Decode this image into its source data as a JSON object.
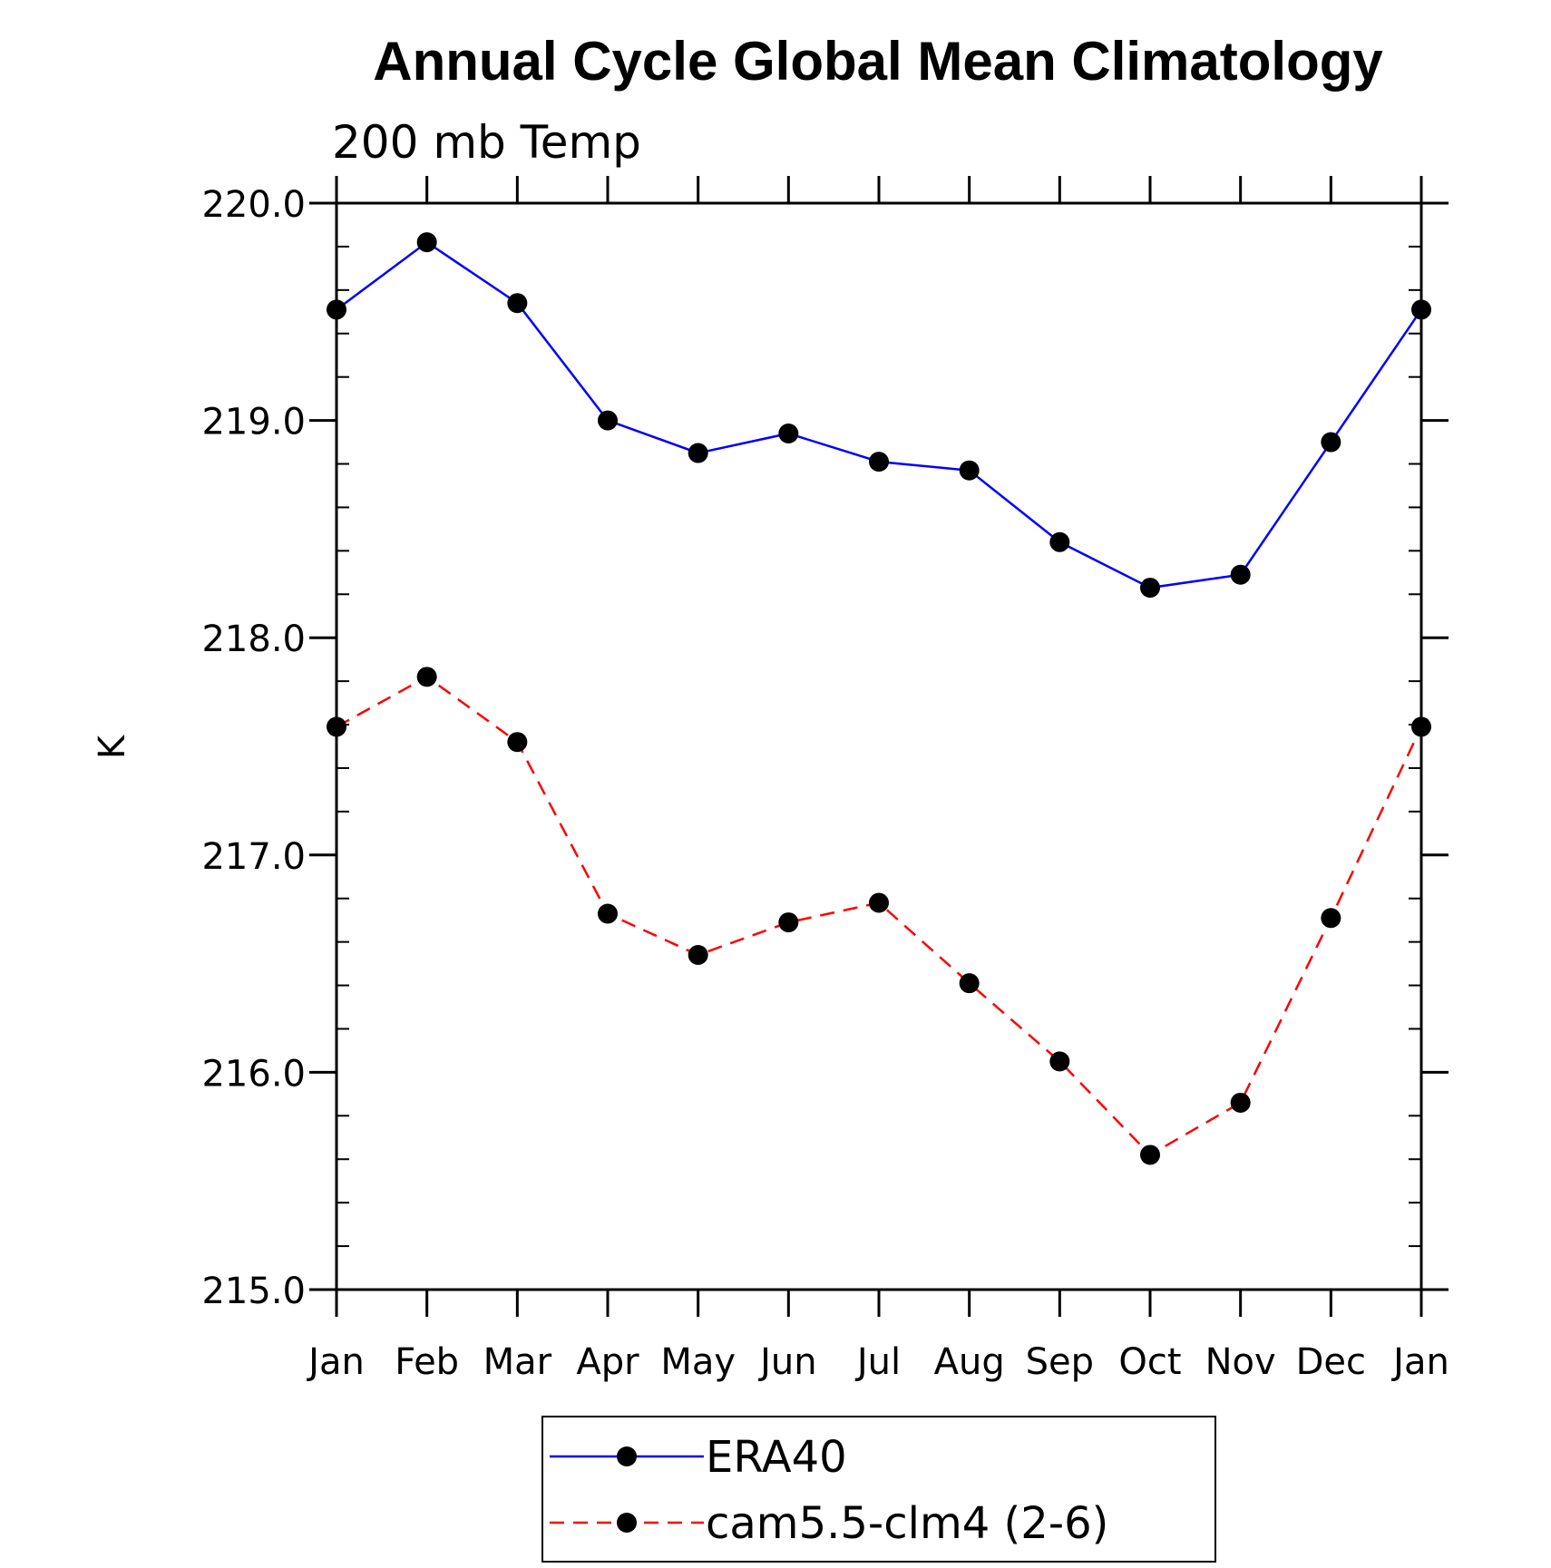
{
  "chart_data": {
    "type": "line",
    "title": "Annual Cycle Global Mean Climatology",
    "subtitle": "200 mb Temp",
    "xlabel": "",
    "ylabel": "K",
    "categories": [
      "Jan",
      "Feb",
      "Mar",
      "Apr",
      "May",
      "Jun",
      "Jul",
      "Aug",
      "Sep",
      "Oct",
      "Nov",
      "Dec",
      "Jan"
    ],
    "ylim": [
      215.0,
      220.0
    ],
    "yticks": [
      "215.0",
      "216.0",
      "217.0",
      "218.0",
      "219.0",
      "220.0"
    ],
    "grid": false,
    "legend_position": "bottom",
    "series": [
      {
        "name": "ERA40",
        "color": "#0000ff",
        "line_style": "solid",
        "marker": "filled-circle",
        "values": [
          219.51,
          219.82,
          219.54,
          219.0,
          218.85,
          218.94,
          218.81,
          218.77,
          218.44,
          218.23,
          218.29,
          218.9,
          219.51
        ]
      },
      {
        "name": "cam5.5-clm4 (2-6)",
        "color": "#ff0000",
        "line_style": "dashed",
        "marker": "filled-circle",
        "values": [
          217.59,
          217.82,
          217.52,
          216.73,
          216.54,
          216.69,
          216.78,
          216.41,
          216.05,
          215.62,
          215.86,
          216.71,
          217.59
        ]
      }
    ]
  }
}
